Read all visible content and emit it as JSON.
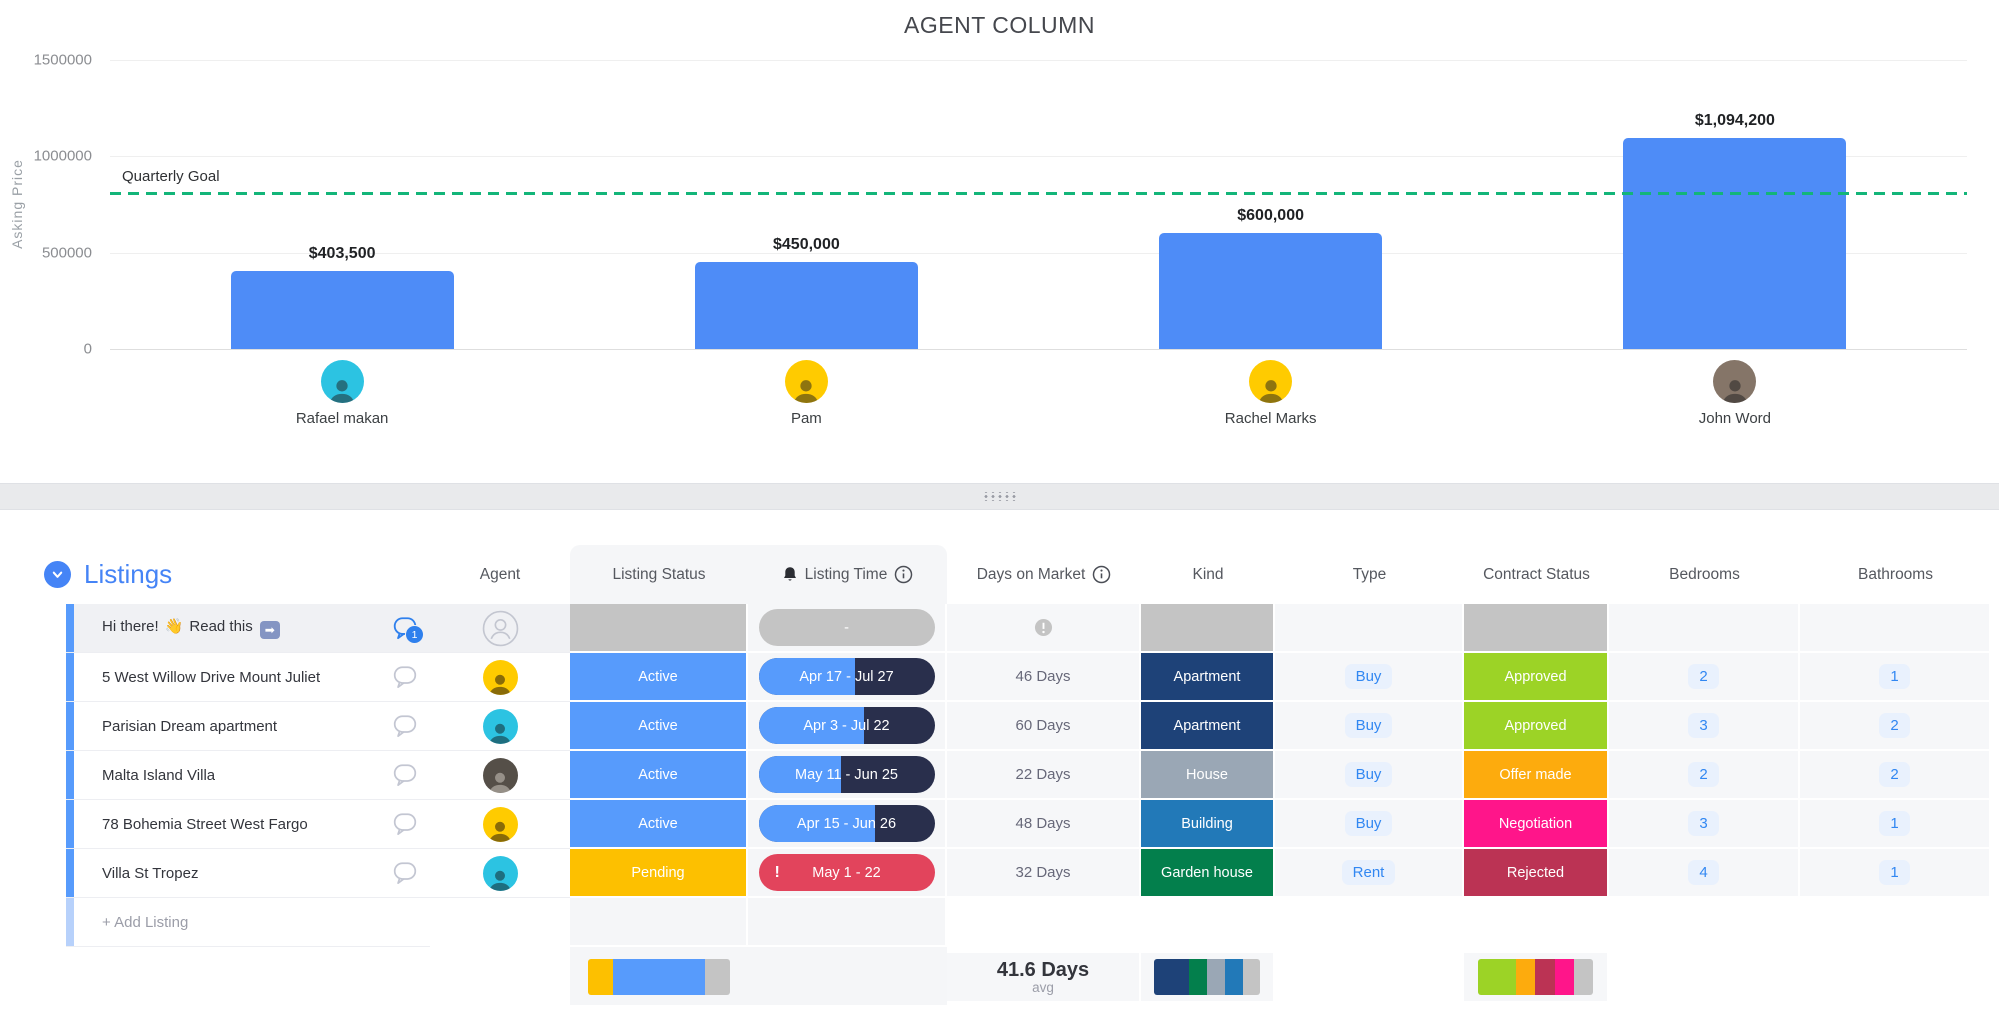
{
  "palette": {
    "active": "#579bfc",
    "pending": "#fdc000",
    "gray": "#c4c4c4",
    "apartment": "#1e4278",
    "house": "#9aa7b5",
    "building": "#2279b8",
    "garden_house": "#037f4c",
    "approved": "#9cd326",
    "offer_made": "#fdab0d",
    "negotiation": "#ff158a",
    "rejected": "#bb3354",
    "overdue": "#e2445c",
    "timeline_dark": "#292f4c",
    "timeline_fill": "#579bfc",
    "bar_blue": "#4e8cf7",
    "goal_green": "#13b579",
    "group_blue": "#4584f6",
    "link_blue": "#3187f2"
  },
  "chart_data": {
    "type": "bar",
    "title": "AGENT COLUMN",
    "ylabel": "Asking Price",
    "categories": [
      "Rafael makan",
      "Pam",
      "Rachel Marks",
      "John Word"
    ],
    "values": [
      403500,
      450000,
      600000,
      1094200
    ],
    "value_labels": [
      "$403,500",
      "$450,000",
      "$600,000",
      "$1,094,200"
    ],
    "yticks": [
      0,
      500000,
      1000000,
      1500000
    ],
    "ylim": [
      0,
      1500000
    ],
    "grid": "horizontal",
    "goal": {
      "label": "Quarterly Goal",
      "value": 810000
    },
    "avatar_colors": [
      "#2cc3e2",
      "#ffcb00",
      "#ffcb00",
      "#857568"
    ]
  },
  "listings": {
    "header": {
      "group": "Listings",
      "agent": "Agent",
      "status": "Listing Status",
      "time": "Listing Time",
      "days": "Days on Market",
      "kind": "Kind",
      "type": "Type",
      "contract": "Contract Status",
      "bedrooms": "Bedrooms",
      "bathrooms": "Bathrooms"
    },
    "rows": [
      {
        "name_pre": "Hi there!",
        "name_hand": "👋",
        "name_mid": "Read this",
        "name_arrow": "➡",
        "chat_badge": "1",
        "timeline": {
          "label": "-"
        }
      },
      {
        "name": "5 West Willow Drive Mount Juliet",
        "status": "Active",
        "timeline": {
          "label": "Apr 17 - Jul 27",
          "fill": "55%"
        },
        "days": "46 Days",
        "kind": "Apartment",
        "type": "Buy",
        "contract": "Approved",
        "bedrooms": "2",
        "bathrooms": "1"
      },
      {
        "name": "Parisian Dream apartment",
        "status": "Active",
        "timeline": {
          "label": "Apr 3 - Jul 22",
          "fill": "60%"
        },
        "days": "60 Days",
        "kind": "Apartment",
        "type": "Buy",
        "contract": "Approved",
        "bedrooms": "3",
        "bathrooms": "2"
      },
      {
        "name": "Malta Island Villa",
        "status": "Active",
        "timeline": {
          "label": "May 11 - Jun 25",
          "fill": "47%"
        },
        "days": "22 Days",
        "kind": "House",
        "type": "Buy",
        "contract": "Offer made",
        "bedrooms": "2",
        "bathrooms": "2"
      },
      {
        "name": "78 Bohemia Street West Fargo",
        "status": "Active",
        "timeline": {
          "label": "Apr 15 - Jun 26",
          "fill": "66%"
        },
        "days": "48 Days",
        "kind": "Building",
        "type": "Buy",
        "contract": "Negotiation",
        "bedrooms": "3",
        "bathrooms": "1"
      },
      {
        "name": "Villa St Tropez",
        "status": "Pending",
        "timeline": {
          "label": "May 1 - 22",
          "warn": "!"
        },
        "days": "32 Days",
        "kind": "Garden house",
        "type": "Rent",
        "contract": "Rejected",
        "bedrooms": "4",
        "bathrooms": "1"
      }
    ],
    "add_label": "+ Add Listing",
    "footer": {
      "days_avg": "41.6 Days",
      "avg_label": "avg",
      "status_bar": [
        {
          "color": "pending",
          "w": "18%"
        },
        {
          "color": "active",
          "w": "64%"
        },
        {
          "color": "gray",
          "w": "18%"
        }
      ],
      "kind_bar": [
        {
          "color": "apartment",
          "w": "33%"
        },
        {
          "color": "garden_house",
          "w": "17%"
        },
        {
          "color": "house",
          "w": "17%"
        },
        {
          "color": "building",
          "w": "17%"
        },
        {
          "color": "gray",
          "w": "16%"
        }
      ],
      "contract_bar": [
        {
          "color": "approved",
          "w": "33%"
        },
        {
          "color": "offer_made",
          "w": "17%"
        },
        {
          "color": "rejected",
          "w": "17%"
        },
        {
          "color": "negotiation",
          "w": "17%"
        },
        {
          "color": "gray",
          "w": "16%"
        }
      ]
    }
  }
}
